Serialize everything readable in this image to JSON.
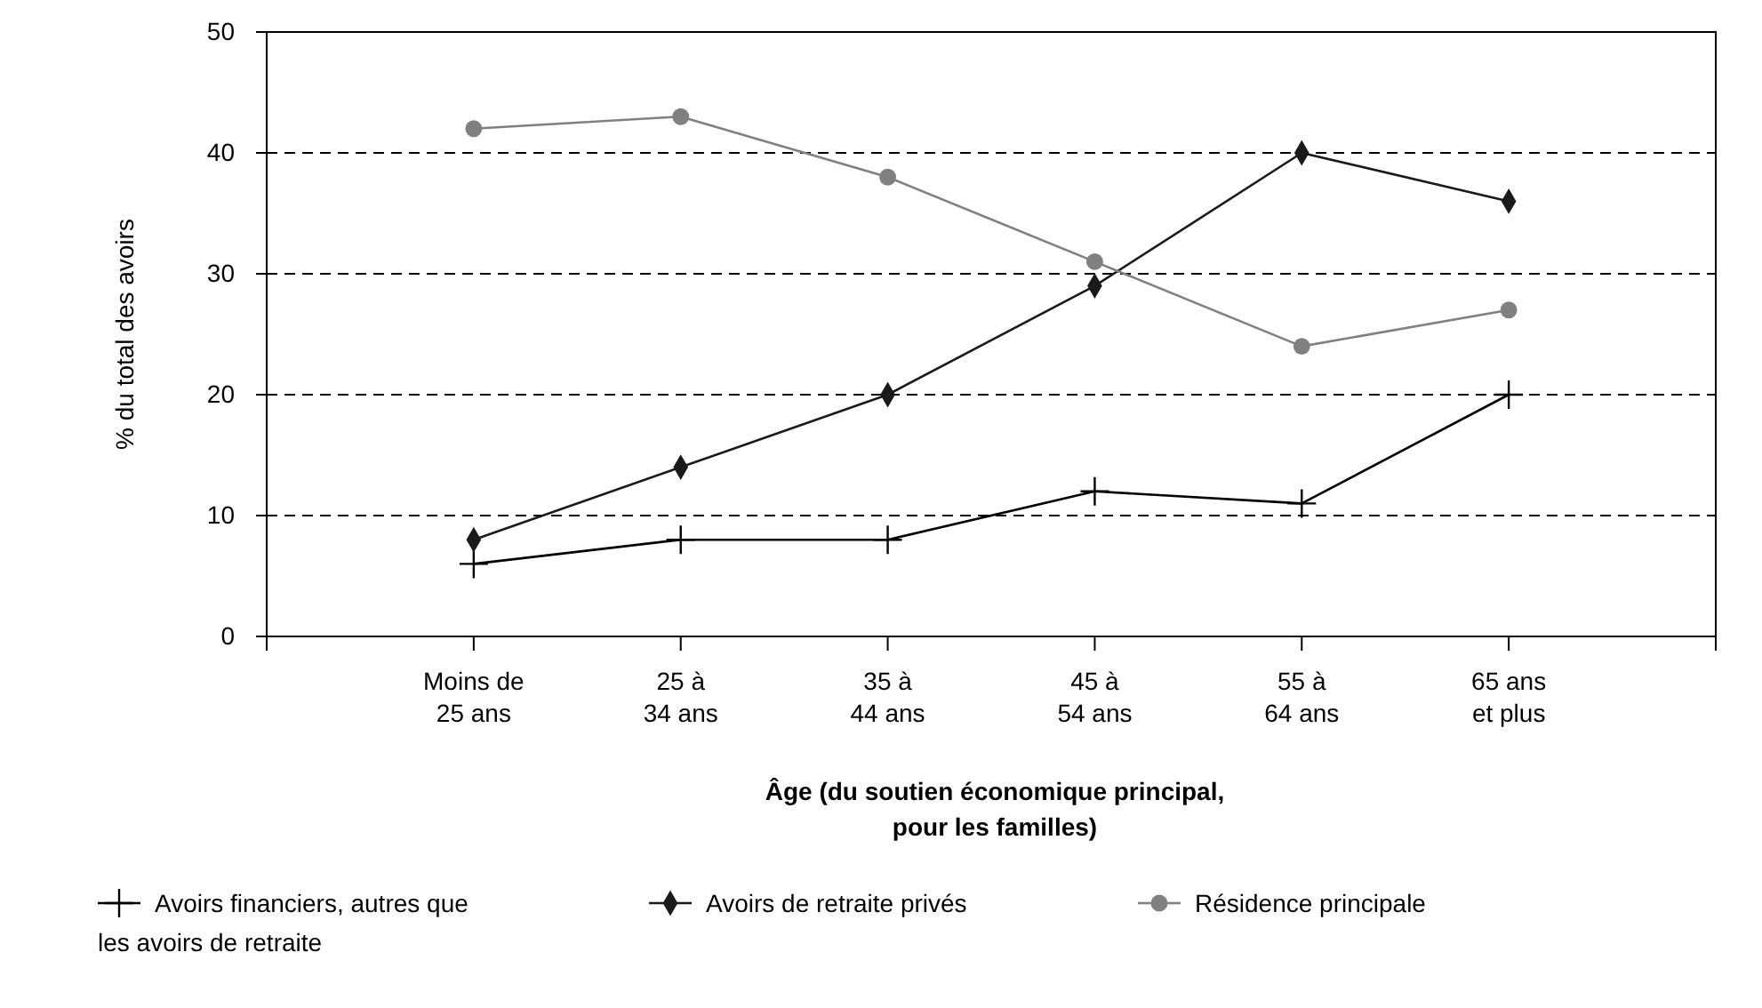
{
  "chart_data": {
    "type": "line",
    "xlabel": "Âge (du soutien économique principal,\npour les familles)",
    "ylabel": "% du total des avoirs",
    "categories": [
      "Moins de\n25 ans",
      "25 à\n34 ans",
      "35 à\n44 ans",
      "45 à\n54 ans",
      "55 à\n64 ans",
      "65 ans\net plus"
    ],
    "series": [
      {
        "name": "Avoirs financiers, autres que\nles avoirs de retraite",
        "color": "#000000",
        "marker": "cross",
        "values": [
          6,
          8,
          8,
          12,
          11,
          20
        ]
      },
      {
        "name": "Avoirs de retraite privés",
        "color": "#1a1a1a",
        "marker": "diamond",
        "values": [
          8,
          14,
          20,
          29,
          40,
          36
        ]
      },
      {
        "name": "Résidence principale",
        "color": "#808080",
        "marker": "circle",
        "values": [
          42,
          43,
          38,
          31,
          24,
          27
        ]
      }
    ],
    "ylim": [
      0,
      50
    ],
    "yticks": [
      0,
      10,
      20,
      30,
      40,
      50
    ],
    "grid": "y",
    "legend": "bottom"
  }
}
